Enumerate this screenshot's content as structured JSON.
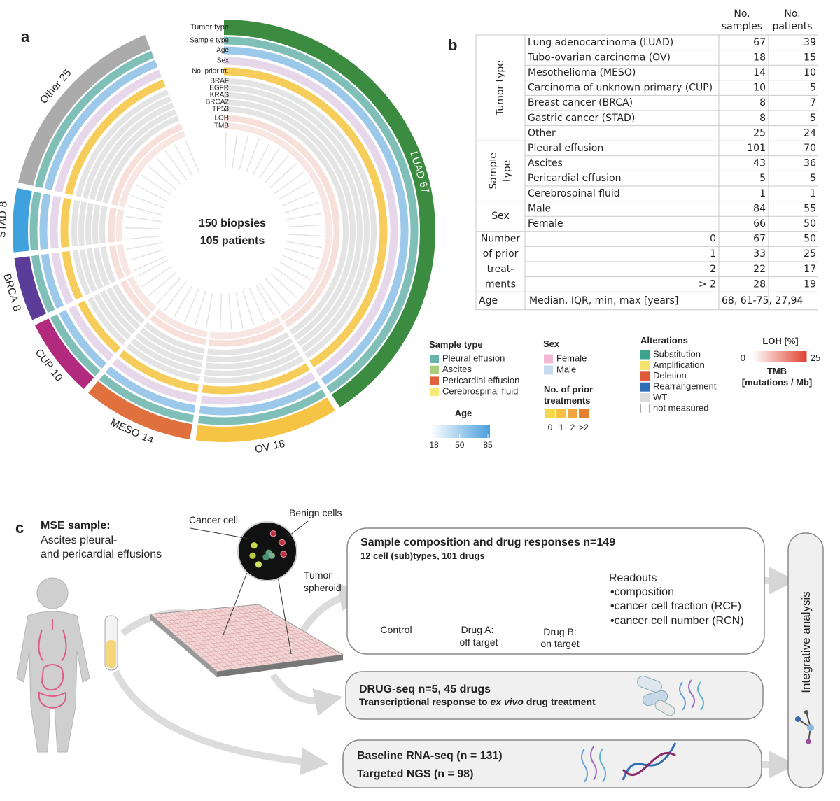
{
  "panel_labels": [
    "a",
    "b",
    "c"
  ],
  "panel_a": {
    "tracks": [
      "Tumor type",
      "Sample type",
      "Age",
      "Sex",
      "No. prior trt.",
      "BRAF",
      "EGFR",
      "KRAS",
      "BRCA2",
      "TP53",
      "LOH",
      "TMB"
    ],
    "center": [
      "150 biopsies",
      "105 patients"
    ],
    "tumor_types": [
      {
        "name": "LUAD",
        "count": 67,
        "color": "#3b8b40"
      },
      {
        "name": "OV",
        "count": 18,
        "color": "#f6c445"
      },
      {
        "name": "MESO",
        "count": 14,
        "color": "#e0703e"
      },
      {
        "name": "CUP",
        "count": 10,
        "color": "#b22a7d"
      },
      {
        "name": "BRCA",
        "count": 8,
        "color": "#5b3c98"
      },
      {
        "name": "STAD",
        "count": 8,
        "color": "#3fa1dd"
      },
      {
        "name": "Other",
        "count": 25,
        "color": "#ababab"
      }
    ],
    "legend": {
      "sample_type": {
        "title": "Sample type",
        "items": [
          {
            "name": "Pleural effusion",
            "color": "#6ab4ae"
          },
          {
            "name": "Ascites",
            "color": "#a9cf7a"
          },
          {
            "name": "Pericardial effusion",
            "color": "#e0603c"
          },
          {
            "name": "Cerebrospinal fluid",
            "color": "#f7ea7a"
          }
        ]
      },
      "age": {
        "title": "Age",
        "ticks": [
          18,
          50,
          85
        ],
        "colors": [
          "#ffffff",
          "#4a9fdc"
        ]
      },
      "sex": {
        "title": "Sex",
        "items": [
          {
            "name": "Female",
            "color": "#f3b8d6"
          },
          {
            "name": "Male",
            "color": "#c6dbf0"
          }
        ]
      },
      "prior": {
        "title": [
          "No. of prior",
          "treatments"
        ],
        "items": [
          {
            "name": "0",
            "color": "#f8d84a"
          },
          {
            "name": "1",
            "color": "#f6c043"
          },
          {
            "name": "2",
            "color": "#f0a43c"
          },
          {
            "name": ">2",
            "color": "#e57f32"
          }
        ]
      },
      "alterations": {
        "title": "Alterations",
        "items": [
          {
            "name": "Substitution",
            "color": "#3ba38e"
          },
          {
            "name": "Amplification",
            "color": "#f5e36c"
          },
          {
            "name": "Deletion",
            "color": "#e05a3a"
          },
          {
            "name": "Rearrangement",
            "color": "#2f6db4"
          },
          {
            "name": "WT",
            "color": "#dcdcdc"
          },
          {
            "name": "not measured",
            "color": "#ffffff"
          }
        ]
      },
      "loh": {
        "title": "LOH [%]",
        "ticks": [
          0,
          25
        ],
        "colors": [
          "#ffffff",
          "#e0402e"
        ],
        "subtitle": [
          "TMB",
          "[mutations / Mb]"
        ]
      }
    }
  },
  "panel_b": {
    "header": [
      [
        "No.",
        "samples"
      ],
      [
        "No.",
        "patients"
      ]
    ],
    "groups": [
      {
        "label": [
          "Tumor type"
        ],
        "rows": [
          [
            "Lung adenocarcinoma (LUAD)",
            67,
            39
          ],
          [
            "Tubo-ovarian carcinoma (OV)",
            18,
            15
          ],
          [
            "Mesothelioma (MESO)",
            14,
            10
          ],
          [
            "Carcinoma of unknown primary (CUP)",
            10,
            5
          ],
          [
            "Breast cancer (BRCA)",
            8,
            7
          ],
          [
            "Gastric cancer (STAD)",
            8,
            5
          ],
          [
            "Other",
            25,
            24
          ]
        ]
      },
      {
        "label": [
          "Sample",
          "type"
        ],
        "rows": [
          [
            "Pleural effusion",
            101,
            70
          ],
          [
            "Ascites",
            43,
            36
          ],
          [
            "Pericardial effusion",
            5,
            5
          ],
          [
            "Cerebrospinal fluid",
            1,
            1
          ]
        ]
      },
      {
        "label": [
          "Sex"
        ],
        "rows": [
          [
            "Male",
            84,
            55
          ],
          [
            "Female",
            66,
            50
          ]
        ]
      },
      {
        "label": [
          "Number",
          "of prior",
          "treat-",
          "ments"
        ],
        "rows": [
          [
            "0",
            67,
            50
          ],
          [
            "1",
            33,
            25
          ],
          [
            "2",
            22,
            17
          ],
          [
            "> 2",
            28,
            19
          ]
        ]
      }
    ],
    "age": [
      "Age",
      "Median, IQR, min, max [years]",
      "68, 61-75, 27,94"
    ]
  },
  "panel_c": {
    "sample": {
      "title": "MSE sample:",
      "lines": [
        "Ascites pleural-",
        "and pericardial effusions"
      ]
    },
    "image_labels": {
      "cancer": "Cancer cell",
      "benign": "Benign cells",
      "spheroid": [
        "Tumor",
        "spheroid"
      ]
    },
    "box1": {
      "title": "Sample composition and drug responses n=149",
      "subtitle": "12 cell (sub)types, 101 drugs",
      "conditions": [
        [
          "Control"
        ],
        [
          "Drug A:",
          "off target"
        ],
        [
          "Drug B:",
          "on target"
        ]
      ],
      "readouts_title": "Readouts",
      "readouts": [
        "•composition",
        "•cancer cell fraction (RCF)",
        "•cancer cell number (RCN)"
      ]
    },
    "box2": {
      "title": "DRUG-seq n=5, 45 drugs",
      "subtitle": [
        "Transcriptional response to ",
        "ex vivo",
        " drug treatment"
      ]
    },
    "box3": {
      "lines": [
        "Baseline RNA-seq (n = 131)",
        "Targeted NGS (n = 98)"
      ]
    },
    "integrative": "Integrative analysis"
  }
}
